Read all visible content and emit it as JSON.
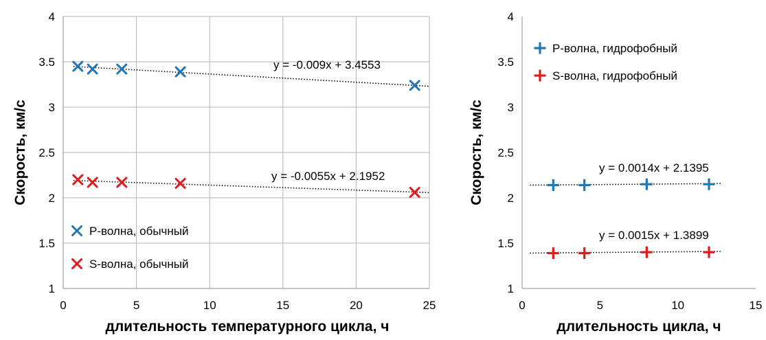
{
  "chart_data": [
    {
      "type": "scatter",
      "xlabel": "длительность температурного цикла, ч",
      "ylabel": "Скорость, км/с",
      "xlim": [
        0,
        25
      ],
      "ylim": [
        1,
        4
      ],
      "xticks": [
        0,
        5,
        10,
        15,
        20,
        25
      ],
      "yticks": [
        1,
        1.5,
        2,
        2.5,
        3,
        3.5,
        4
      ],
      "xtick_labels": [
        "0",
        "5",
        "10",
        "15",
        "20",
        "25"
      ],
      "ytick_labels": [
        "1",
        "1.5",
        "2",
        "2.5",
        "3",
        "3.5",
        "4"
      ],
      "grid": true,
      "legend_position": "bottom-left",
      "series": [
        {
          "name": "P-волна, обычный",
          "marker": "x",
          "color": "#1f77b4",
          "x": [
            1,
            2,
            4,
            8,
            24
          ],
          "y": [
            3.45,
            3.42,
            3.42,
            3.39,
            3.24
          ],
          "trendline": {
            "slope": -0.009,
            "intercept": 3.4553,
            "label": "y = -0.009x + 3.4553"
          }
        },
        {
          "name": "S-волна, обычный",
          "marker": "x",
          "color": "#e31a1c",
          "x": [
            1,
            2,
            4,
            8,
            24
          ],
          "y": [
            2.2,
            2.17,
            2.17,
            2.16,
            2.06
          ],
          "trendline": {
            "slope": -0.0055,
            "intercept": 2.1952,
            "label": "y = -0.0055x + 2.1952"
          }
        }
      ]
    },
    {
      "type": "scatter",
      "xlabel": "длительность цикла, ч",
      "ylabel": "Скорость, км/с",
      "xlim": [
        0,
        15
      ],
      "ylim": [
        1,
        4
      ],
      "xticks": [
        0,
        5,
        10,
        15
      ],
      "yticks": [
        1,
        1.5,
        2,
        2.5,
        3,
        3.5,
        4
      ],
      "xtick_labels": [
        "0",
        "5",
        "10",
        "15"
      ],
      "ytick_labels": [
        "1",
        "1.5",
        "2",
        "2.5",
        "3",
        "3.5",
        "4"
      ],
      "grid": false,
      "legend_position": "top-left",
      "series": [
        {
          "name": "P-волна, гидрофобный",
          "marker": "+",
          "color": "#1f77b4",
          "x": [
            2,
            4,
            8,
            12
          ],
          "y": [
            2.14,
            2.14,
            2.15,
            2.15
          ],
          "trendline": {
            "slope": 0.0014,
            "intercept": 2.1395,
            "label": "y = 0.0014x + 2.1395"
          }
        },
        {
          "name": "S-волна, гидрофобный",
          "marker": "+",
          "color": "#e31a1c",
          "x": [
            2,
            4,
            8,
            12
          ],
          "y": [
            1.39,
            1.39,
            1.4,
            1.4
          ],
          "trendline": {
            "slope": 0.0015,
            "intercept": 1.3899,
            "label": "y = 0.0015x + 1.3899"
          }
        }
      ]
    }
  ]
}
